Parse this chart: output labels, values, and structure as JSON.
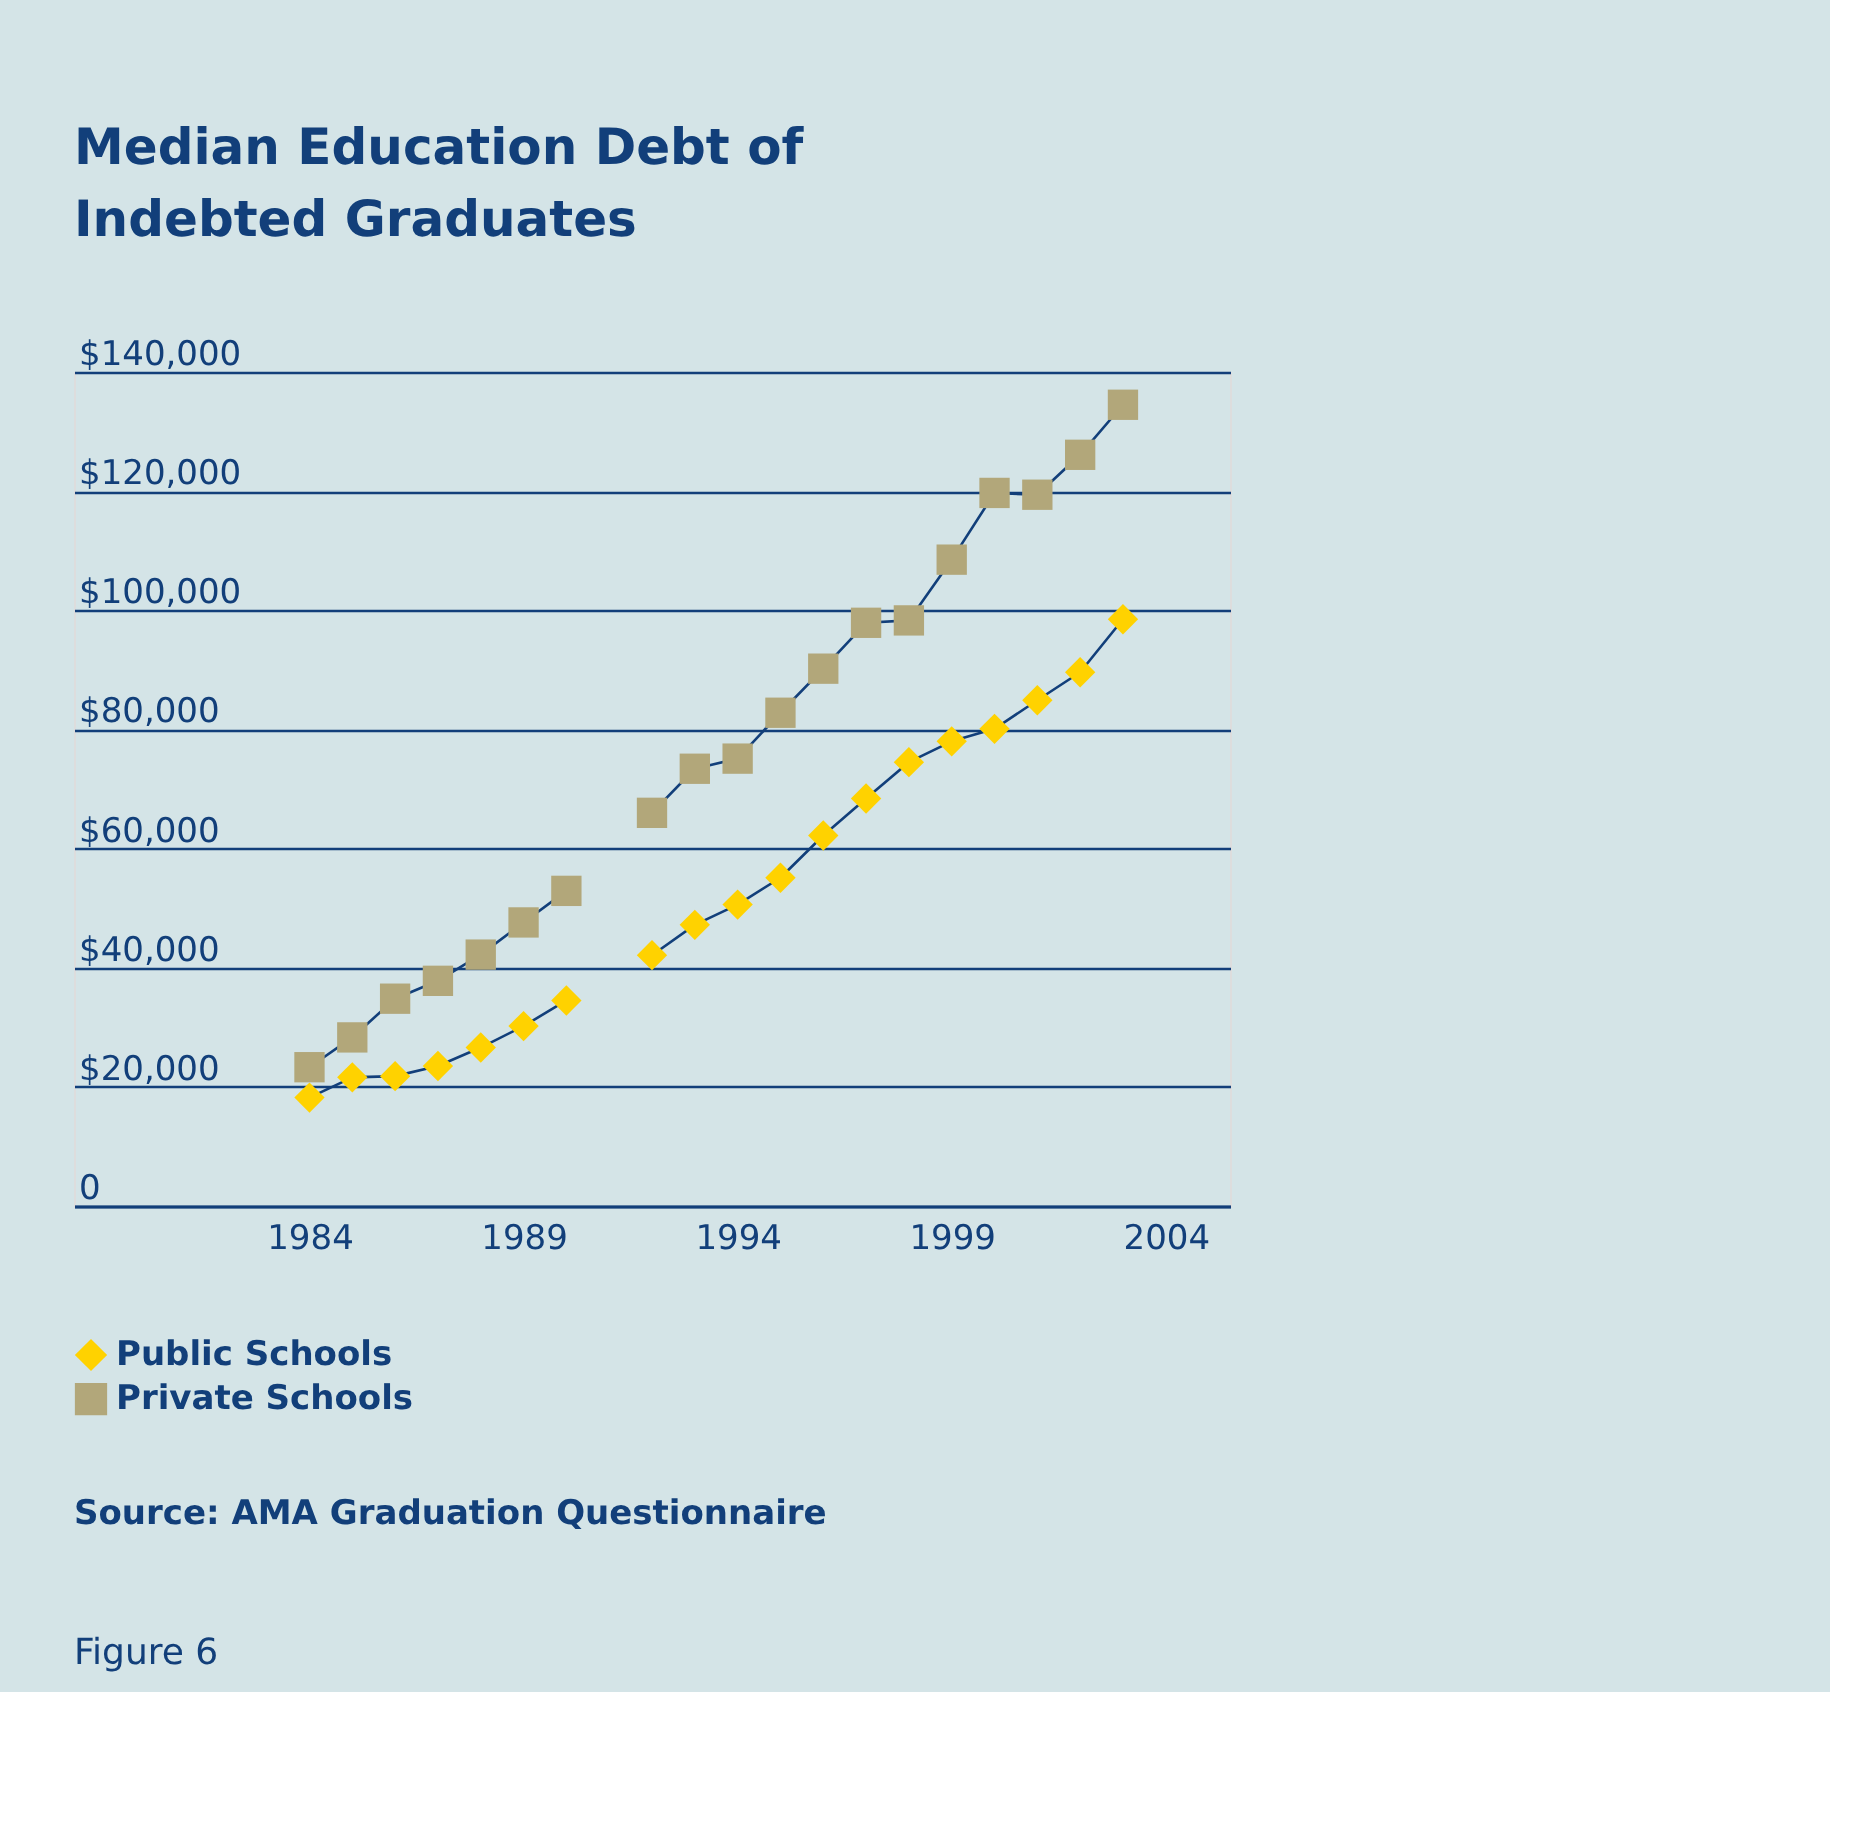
{
  "chart_data": {
    "type": "line",
    "title": "Median Education Debt of Indebted Graduates",
    "x": [
      1984,
      1985,
      1986,
      1987,
      1988,
      1989,
      1990,
      1991,
      1992,
      1993,
      1994,
      1995,
      1996,
      1997,
      1998,
      1999,
      2000,
      2001,
      2002,
      2003
    ],
    "series": [
      {
        "name": "Public Schools",
        "color": "#ffd200",
        "marker": "diamond",
        "values": [
          18200,
          21600,
          21800,
          23500,
          26600,
          30200,
          34500,
          null,
          42100,
          47200,
          50600,
          55100,
          62200,
          68400,
          74500,
          78000,
          80100,
          84900,
          89600,
          98500
        ]
      },
      {
        "name": "Private Schools",
        "color": "#b2a77a",
        "marker": "square",
        "values": [
          23300,
          28300,
          34800,
          37800,
          42200,
          47600,
          52900,
          null,
          66000,
          73400,
          75100,
          82800,
          90200,
          97900,
          98300,
          108500,
          119700,
          119400,
          126100,
          134500
        ]
      }
    ],
    "xlim": [
      1978.5,
      2005.5
    ],
    "xticks": [
      1984,
      1989,
      1994,
      1999,
      2004
    ],
    "ylim": [
      0,
      140000
    ],
    "yticks": [
      {
        "value": 0,
        "label": "0"
      },
      {
        "value": 20000,
        "label": "$20,000"
      },
      {
        "value": 40000,
        "label": "$40,000"
      },
      {
        "value": 60000,
        "label": "$60,000"
      },
      {
        "value": 80000,
        "label": "$80,000"
      },
      {
        "value": 100000,
        "label": "$100,000"
      },
      {
        "value": 120000,
        "label": "$120,000"
      },
      {
        "value": 140000,
        "label": "$140,000"
      }
    ],
    "grid": "y",
    "legend": "bottom left",
    "annotations": [
      "Source: AMA Graduation Questionnaire",
      "Figure 6"
    ]
  }
}
